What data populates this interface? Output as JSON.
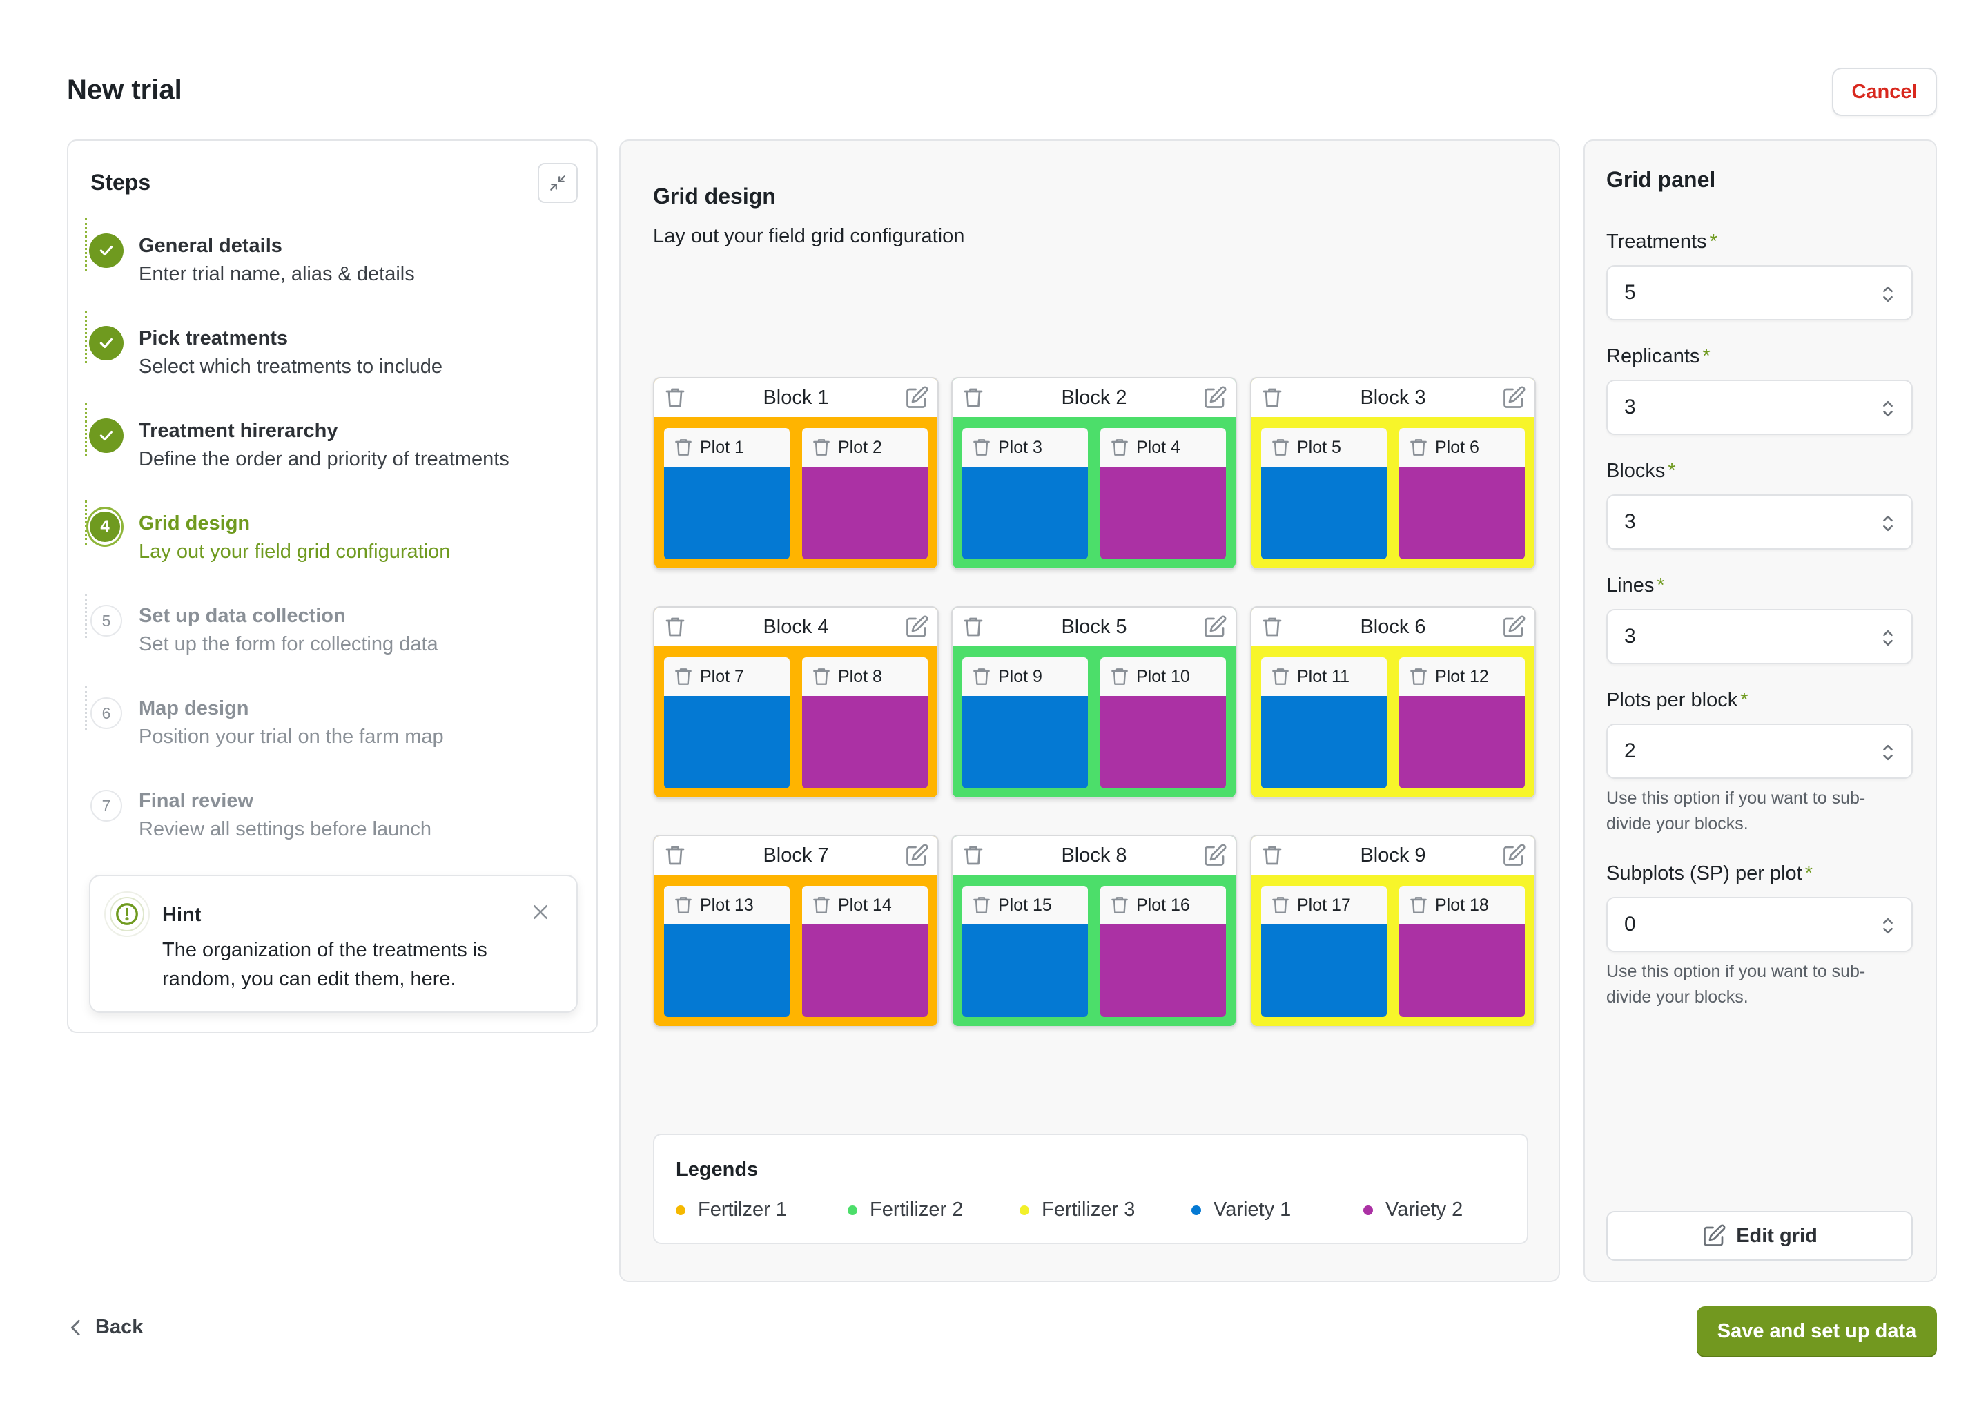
{
  "header": {
    "title": "New trial",
    "cancel_label": "Cancel"
  },
  "steps": {
    "title": "Steps",
    "items": [
      {
        "title": "General details",
        "desc": "Enter trial name, alias & details",
        "state": "done"
      },
      {
        "title": "Pick treatments",
        "desc": "Select which treatments to include",
        "state": "done"
      },
      {
        "title": "Treatment hirerarchy",
        "desc": "Define the order and priority of treatments",
        "state": "done"
      },
      {
        "title": "Grid design",
        "desc": "Lay out your field grid configuration",
        "state": "active",
        "number": "4"
      },
      {
        "title": "Set up data collection",
        "desc": "Set up the form for collecting data",
        "state": "todo",
        "number": "5"
      },
      {
        "title": "Map design",
        "desc": "Position your trial on the farm map",
        "state": "todo",
        "number": "6"
      },
      {
        "title": "Final review",
        "desc": "Review all settings before launch",
        "state": "todo",
        "number": "7"
      }
    ]
  },
  "hint": {
    "title": "Hint",
    "text": "The organization of the treatments is random, you can edit them, here."
  },
  "grid_design": {
    "title": "Grid design",
    "subtitle": "Lay out your field grid configuration",
    "blocks": [
      {
        "label": "Block 1",
        "color": "#ffb400",
        "plots": [
          "Plot 1",
          "Plot 2"
        ]
      },
      {
        "label": "Block 2",
        "color": "#4cde6a",
        "plots": [
          "Plot 3",
          "Plot 4"
        ]
      },
      {
        "label": "Block 3",
        "color": "#f7f52a",
        "plots": [
          "Plot 5",
          "Plot 6"
        ]
      },
      {
        "label": "Block 4",
        "color": "#ffb400",
        "plots": [
          "Plot 7",
          "Plot 8"
        ]
      },
      {
        "label": "Block 5",
        "color": "#4cde6a",
        "plots": [
          "Plot 9",
          "Plot 10"
        ]
      },
      {
        "label": "Block 6",
        "color": "#f7f52a",
        "plots": [
          "Plot 11",
          "Plot 12"
        ]
      },
      {
        "label": "Block 7",
        "color": "#ffb400",
        "plots": [
          "Plot 13",
          "Plot 14"
        ]
      },
      {
        "label": "Block 8",
        "color": "#4cde6a",
        "plots": [
          "Plot 15",
          "Plot 16"
        ]
      },
      {
        "label": "Block 9",
        "color": "#f7f52a",
        "plots": [
          "Plot 17",
          "Plot 18"
        ]
      }
    ],
    "plot_colors": [
      "#0479d3",
      "#ab31a4"
    ],
    "legend": {
      "title": "Legends",
      "items": [
        {
          "label": "Fertilzer 1",
          "color": "#f5b800"
        },
        {
          "label": "Fertilizer 2",
          "color": "#4cde6a"
        },
        {
          "label": "Fertilizer 3",
          "color": "#f2f02a"
        },
        {
          "label": "Variety 1",
          "color": "#0479d3"
        },
        {
          "label": "Variety 2",
          "color": "#ab31a4"
        }
      ]
    }
  },
  "grid_panel": {
    "title": "Grid panel",
    "fields": [
      {
        "label": "Treatments",
        "value": "5"
      },
      {
        "label": "Replicants",
        "value": "3"
      },
      {
        "label": "Blocks",
        "value": "3"
      },
      {
        "label": "Lines",
        "value": "3"
      },
      {
        "label": "Plots per block",
        "value": "2",
        "help": "Use this option if you want to sub-divide your blocks."
      },
      {
        "label": "Subplots (SP) per plot",
        "value": "0",
        "help": "Use this option if you want to sub-divide your blocks."
      }
    ],
    "required_mark": "*",
    "edit_grid_label": "Edit grid"
  },
  "footer": {
    "back_label": "Back",
    "save_label": "Save and set up data"
  },
  "colors": {
    "accent": "#6f9a1f",
    "danger": "#d8281e"
  }
}
